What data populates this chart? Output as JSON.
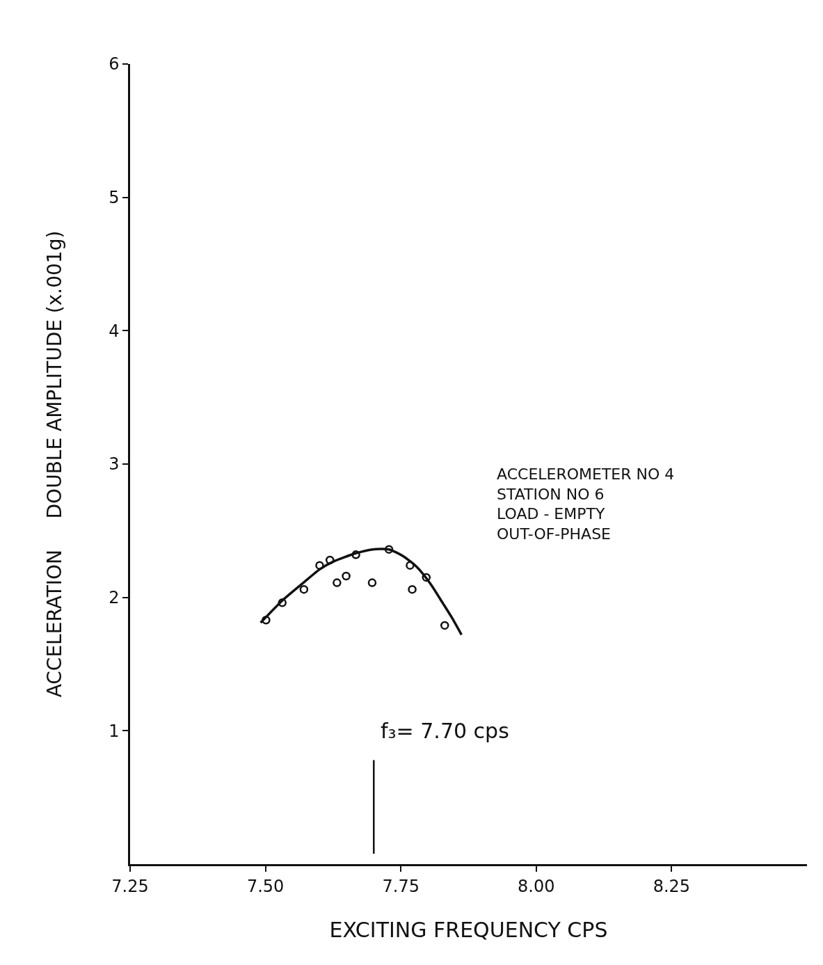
{
  "chart_data": {
    "type": "scatter",
    "xlabel": "EXCITING FREQUENCY CPS",
    "ylabel": "ACCELERATION     DOUBLE AMPLITUDE (x.001g)",
    "xlim": [
      7.25,
      8.5
    ],
    "xticks": [
      7.25,
      {
        "value": 7.5,
        "label": "7.50"
      },
      {
        "value": 7.75,
        "label": "7.75"
      },
      {
        "value": 8.0,
        "label": "8.00"
      },
      8.25
    ],
    "ylim": [
      0,
      6
    ],
    "yticks": [
      1,
      2,
      3,
      4,
      5,
      6
    ],
    "grid": false,
    "legend": false,
    "series": [
      {
        "marker": "circle",
        "color": "#111111",
        "x": [
          7.501,
          7.531,
          7.571,
          7.6,
          7.619,
          7.632,
          7.649,
          7.667,
          7.697,
          7.728,
          7.767,
          7.771,
          7.797,
          7.831
        ],
        "values": [
          1.83,
          1.96,
          2.06,
          2.24,
          2.28,
          2.11,
          2.16,
          2.32,
          2.11,
          2.36,
          2.24,
          2.06,
          2.15,
          1.79
        ]
      },
      {
        "type": "line",
        "marker": "none",
        "line_style": "solid",
        "color": "#111111",
        "x": [
          7.491,
          7.532,
          7.57,
          7.6,
          7.626,
          7.666,
          7.698,
          7.728,
          7.754,
          7.779,
          7.805,
          7.827,
          7.844,
          7.862
        ],
        "values": [
          1.81,
          1.98,
          2.11,
          2.21,
          2.27,
          2.33,
          2.36,
          2.36,
          2.31,
          2.23,
          2.1,
          1.96,
          1.85,
          1.72
        ]
      }
    ],
    "ref_lines": [
      {
        "axis": "x",
        "value": 7.7,
        "label": "f₃= 7.70 cps",
        "color": "#111111"
      }
    ],
    "annotations": [
      "ACCELEROMETER NO 4\nSTATION NO 6\nLOAD - EMPTY\nOUT-OF-PHASE"
    ]
  }
}
